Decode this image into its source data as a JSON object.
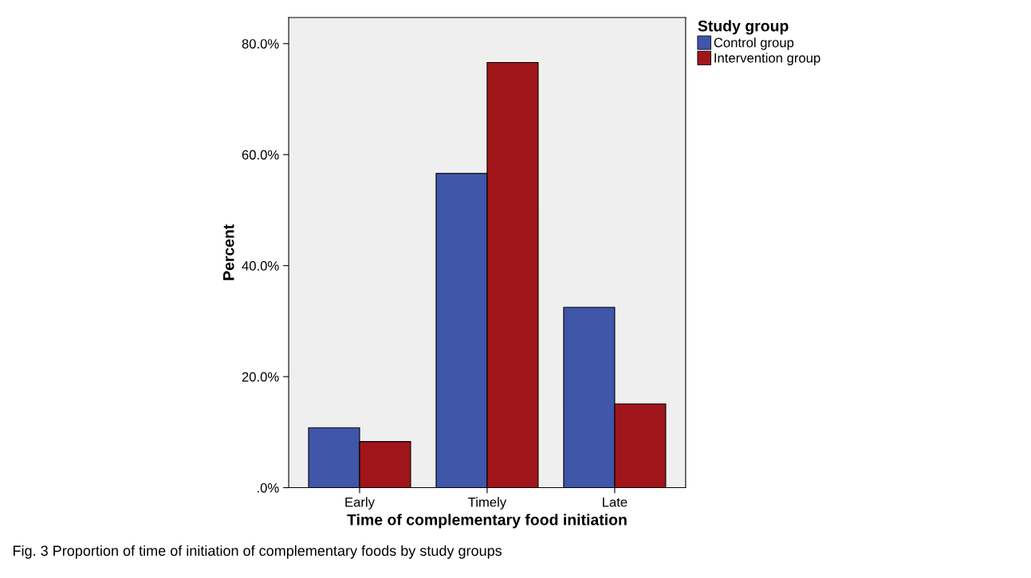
{
  "chart_data": {
    "type": "bar",
    "xlabel": "Time of complementary food initiation",
    "ylabel": "Percent",
    "legend_title": "Study group",
    "categories": [
      "Early",
      "Timely",
      "Late"
    ],
    "series": [
      {
        "name": "Control group",
        "color": "#3f56a9",
        "values": [
          10.8,
          56.6,
          32.5
        ]
      },
      {
        "name": "Intervention group",
        "color": "#a01519",
        "values": [
          8.3,
          76.6,
          15.1
        ]
      }
    ],
    "ylim": [
      0,
      84.7
    ],
    "yticks": [
      {
        "value": 0,
        "label": ".0%"
      },
      {
        "value": 20,
        "label": "20.0%"
      },
      {
        "value": 40,
        "label": "40.0%"
      },
      {
        "value": 60,
        "label": "60.0%"
      },
      {
        "value": 80,
        "label": "80.0%"
      }
    ],
    "grid": false,
    "legend": "top right",
    "annotations": [
      "Fig. 3 Proportion of time of initiation of complementary foods by study groups"
    ]
  }
}
